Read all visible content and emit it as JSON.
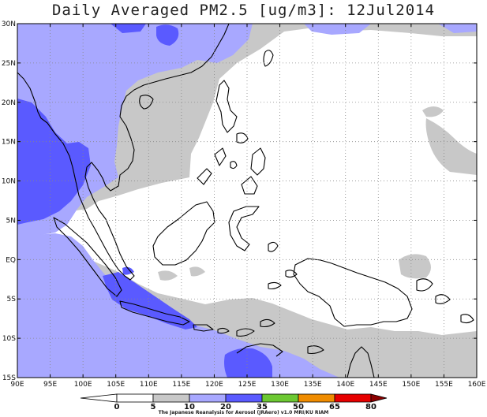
{
  "title": "Daily Averaged PM2.5 [ug/m3]: 12Jul2014",
  "credit": "The Japanese Reanalysis for Aerosol (JRAero) v1.0 MRI/KU RIAM",
  "axes": {
    "lon_labels": [
      "90E",
      "95E",
      "100E",
      "105E",
      "110E",
      "115E",
      "120E",
      "125E",
      "130E",
      "135E",
      "140E",
      "145E",
      "150E",
      "155E",
      "160E"
    ],
    "lat_labels": [
      "30N",
      "25N",
      "20N",
      "15N",
      "10N",
      "5N",
      "EQ",
      "5S",
      "10S",
      "15S"
    ]
  },
  "colorbar": {
    "labels": [
      "0",
      "5",
      "10",
      "20",
      "35",
      "50",
      "65",
      "80"
    ],
    "colors": [
      "#ffffff",
      "#c8c8c8",
      "#a8a8ff",
      "#5a5aff",
      "#6cc832",
      "#f08c00",
      "#e60000"
    ],
    "under_color": "#ffffff",
    "over_color": "#8b0000"
  },
  "palette": {
    "level_5_10": "#c8c8c8",
    "level_10_20": "#a8a8ff",
    "level_20_35": "#5a5aff"
  }
}
